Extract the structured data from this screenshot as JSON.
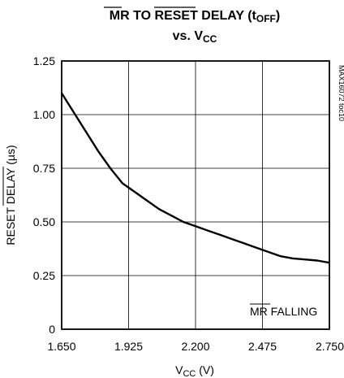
{
  "chart_data": {
    "type": "line",
    "title": {
      "mr": "MR",
      "to": " TO ",
      "reset": "RESET",
      "delay": " DELAY (t",
      "off": "OFF",
      "close": ")",
      "line2_vs": "vs. V",
      "line2_sub": "CC"
    },
    "xlabel": {
      "main": "V",
      "sub": "CC",
      "unit": " (V)"
    },
    "ylabel": {
      "main": "RESET",
      "rest": " DELAY (µs)"
    },
    "xlim": [
      1.65,
      2.75
    ],
    "ylim": [
      0,
      1.25
    ],
    "x_ticks": [
      "1.650",
      "1.925",
      "2.200",
      "2.475",
      "2.750"
    ],
    "y_ticks": [
      "0",
      "0.25",
      "0.50",
      "0.75",
      "1.00",
      "1.25"
    ],
    "grid": true,
    "annotation": {
      "overline": "MR",
      "rest": " FALLING"
    },
    "side_note": "MAX16072 toc10",
    "series": [
      {
        "x": [
          1.65,
          1.7,
          1.75,
          1.8,
          1.85,
          1.9,
          1.95,
          2.0,
          2.05,
          2.1,
          2.15,
          2.2,
          2.25,
          2.3,
          2.35,
          2.4,
          2.45,
          2.5,
          2.55,
          2.6,
          2.65,
          2.7,
          2.75
        ],
        "y": [
          1.1,
          1.01,
          0.92,
          0.83,
          0.75,
          0.68,
          0.64,
          0.6,
          0.56,
          0.53,
          0.5,
          0.48,
          0.46,
          0.44,
          0.42,
          0.4,
          0.38,
          0.36,
          0.34,
          0.33,
          0.325,
          0.32,
          0.31
        ]
      }
    ]
  }
}
